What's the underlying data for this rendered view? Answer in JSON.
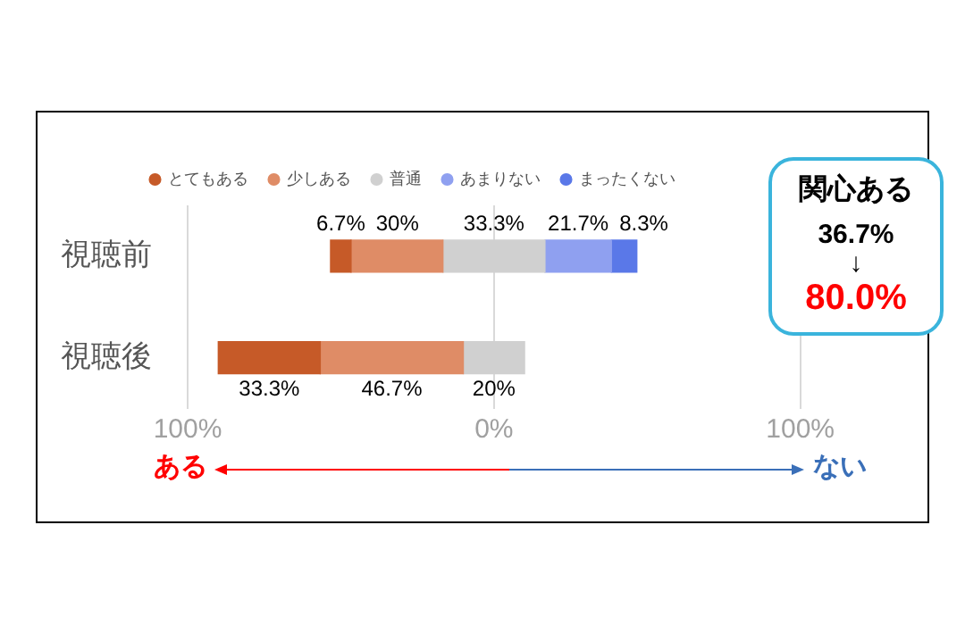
{
  "chart_data": {
    "type": "bar",
    "orientation": "horizontal",
    "categories": [
      "視聴前",
      "視聴後"
    ],
    "series": [
      {
        "name": "とてもある",
        "color": "#c65a28",
        "base": [
          -53.35,
          -90
        ],
        "values": [
          6.7,
          33.3
        ],
        "value_labels": [
          "6.7%",
          "33.3%"
        ]
      },
      {
        "name": "少しある",
        "color": "#df8c66",
        "base": [
          -46.65,
          -56.7
        ],
        "values": [
          30,
          46.7
        ],
        "value_labels": [
          "30%",
          "46.7%"
        ]
      },
      {
        "name": "普通",
        "color": "#d0d0d0",
        "base": [
          -16.65,
          -10
        ],
        "values": [
          33.3,
          20
        ],
        "value_labels": [
          "33.3%",
          "20%"
        ]
      },
      {
        "name": "あまりない",
        "color": "#8fa0f0",
        "base": [
          16.65,
          null
        ],
        "values": [
          21.7,
          null
        ],
        "value_labels": [
          "21.7%",
          null
        ]
      },
      {
        "name": "まったくない",
        "color": "#5a78e8",
        "base": [
          38.35,
          null
        ],
        "values": [
          8.3,
          null
        ],
        "value_labels": [
          "8.3%",
          null
        ]
      }
    ],
    "xlim": [
      -100,
      100
    ],
    "xticks": [
      {
        "value": -100,
        "label": "100%"
      },
      {
        "value": 0,
        "label": "0%"
      },
      {
        "value": 100,
        "label": "100%"
      }
    ],
    "grid": "x",
    "legend": "top",
    "annotations": [
      "関心ある",
      "36.7%",
      "↓",
      "80.0%",
      "ある",
      "ない"
    ]
  }
}
